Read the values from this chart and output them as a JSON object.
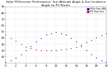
{
  "title": "Solar PV/Inverter Performance  Sun Altitude Angle & Sun Incidence Angle on PV Panels",
  "bg_color": "#ffffff",
  "plot_bg": "#ffffff",
  "grid_color": "#aaaaaa",
  "series": [
    {
      "label": "HOz Sun Alt",
      "color": "#0000cc",
      "points": [
        [
          0,
          2
        ],
        [
          1,
          4
        ],
        [
          2,
          8
        ],
        [
          3,
          14
        ],
        [
          4,
          20
        ],
        [
          5,
          27
        ],
        [
          6,
          34
        ],
        [
          7,
          40
        ],
        [
          8,
          45
        ],
        [
          9,
          48
        ],
        [
          10,
          50
        ],
        [
          11,
          48
        ],
        [
          12,
          45
        ],
        [
          13,
          40
        ],
        [
          14,
          34
        ],
        [
          15,
          27
        ],
        [
          16,
          20
        ],
        [
          17,
          14
        ],
        [
          18,
          8
        ],
        [
          19,
          4
        ],
        [
          20,
          2
        ]
      ]
    },
    {
      "label": "PV Sun Inc",
      "color": "#cc0000",
      "points": [
        [
          0,
          45
        ],
        [
          1,
          40
        ],
        [
          2,
          35
        ],
        [
          3,
          30
        ],
        [
          4,
          26
        ],
        [
          5,
          23
        ],
        [
          6,
          21
        ],
        [
          7,
          20
        ],
        [
          8,
          20
        ],
        [
          9,
          20
        ],
        [
          10,
          20
        ],
        [
          11,
          21
        ],
        [
          12,
          22
        ],
        [
          13,
          24
        ],
        [
          14,
          26
        ],
        [
          15,
          29
        ],
        [
          16,
          33
        ],
        [
          17,
          37
        ],
        [
          18,
          41
        ],
        [
          19,
          44
        ],
        [
          20,
          47
        ]
      ]
    }
  ],
  "xlim": [
    0,
    20
  ],
  "ylim": [
    0,
    90
  ],
  "yticks": [
    10,
    20,
    30,
    40,
    50,
    60,
    70,
    80,
    90
  ],
  "xtick_values": [
    0,
    2,
    4,
    6,
    8,
    10,
    12,
    14,
    16,
    18,
    20
  ],
  "legend_labels": [
    "HOz Sun Alt",
    "PV Sun Inc"
  ],
  "legend_colors": [
    "#0000cc",
    "#cc0000"
  ],
  "title_color": "#000000",
  "tick_color": "#000000",
  "title_fontsize": 3.2,
  "tick_fontsize": 2.8,
  "legend_fontsize": 2.8,
  "marker_size": 1.0,
  "line_width": 0.0
}
